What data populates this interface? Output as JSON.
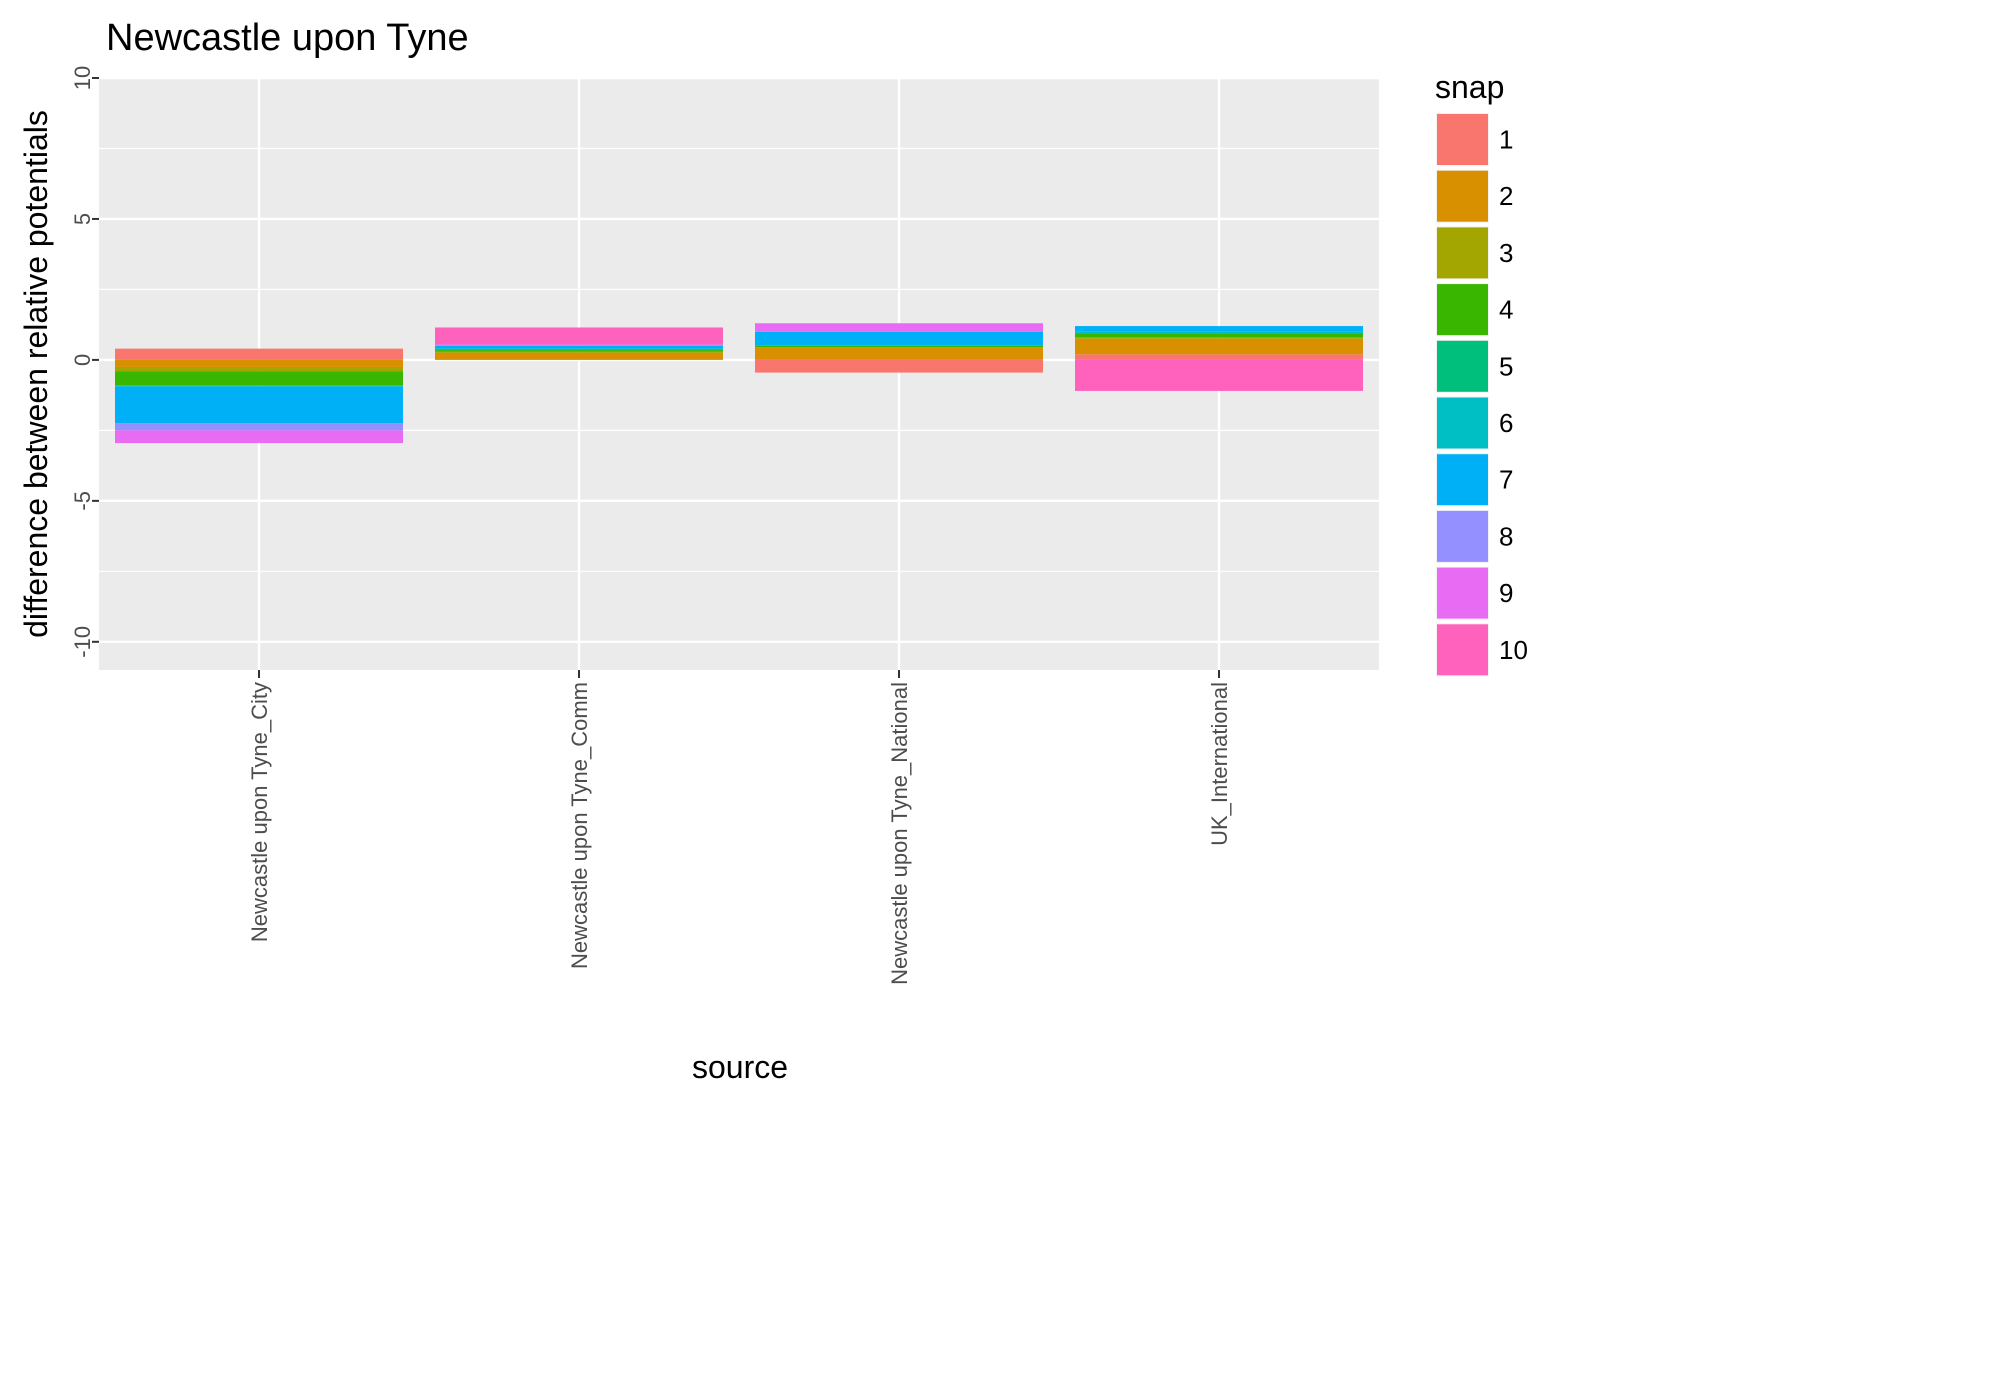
{
  "chart_data": {
    "type": "bar",
    "stacked": true,
    "title": "Newcastle upon Tyne",
    "xlabel": "source",
    "ylabel": "difference between relative potentials",
    "categories": [
      "Newcastle upon Tyne_City",
      "Newcastle upon Tyne_Comm",
      "Newcastle upon Tyne_National",
      "UK_International"
    ],
    "ylim": [
      -11.0,
      10.0
    ],
    "yticks": [
      -10,
      -5,
      0,
      5,
      10
    ],
    "grid": true,
    "legend": {
      "title": "snap",
      "position": "right"
    },
    "series": [
      {
        "name": "1",
        "color": "#F8766D",
        "values": [
          0.4,
          0.0,
          -0.45,
          0.2
        ]
      },
      {
        "name": "2",
        "color": "#D89000",
        "values": [
          -0.25,
          0.25,
          0.45,
          0.55
        ]
      },
      {
        "name": "3",
        "color": "#A3A500",
        "values": [
          -0.15,
          0.05,
          0.0,
          0.05
        ]
      },
      {
        "name": "4",
        "color": "#39B600",
        "values": [
          -0.5,
          0.05,
          0.05,
          0.15
        ]
      },
      {
        "name": "5",
        "color": "#00BF7D",
        "values": [
          0.0,
          0.0,
          0.0,
          0.0
        ]
      },
      {
        "name": "6",
        "color": "#00BFC4",
        "values": [
          -0.05,
          0.05,
          0.0,
          0.05
        ]
      },
      {
        "name": "7",
        "color": "#00B0F6",
        "values": [
          -1.3,
          0.1,
          0.5,
          0.2
        ]
      },
      {
        "name": "8",
        "color": "#9590FF",
        "values": [
          -0.25,
          0.0,
          0.0,
          0.0
        ]
      },
      {
        "name": "9",
        "color": "#E76BF3",
        "values": [
          -0.45,
          0.05,
          0.3,
          0.0
        ]
      },
      {
        "name": "10",
        "color": "#FF62BC",
        "values": [
          0.0,
          0.6,
          0.0,
          -1.1
        ]
      }
    ]
  }
}
